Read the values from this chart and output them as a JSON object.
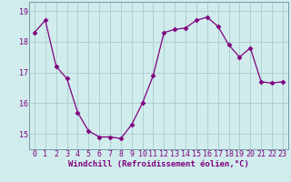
{
  "x": [
    0,
    1,
    2,
    3,
    4,
    5,
    6,
    7,
    8,
    9,
    10,
    11,
    12,
    13,
    14,
    15,
    16,
    17,
    18,
    19,
    20,
    21,
    22,
    23
  ],
  "y": [
    18.3,
    18.7,
    17.2,
    16.8,
    15.7,
    15.1,
    14.9,
    14.9,
    14.85,
    15.3,
    16.0,
    16.9,
    18.3,
    18.4,
    18.45,
    18.7,
    18.8,
    18.5,
    17.9,
    17.5,
    17.8,
    16.7,
    16.65,
    16.7
  ],
  "line_color": "#800080",
  "marker": "D",
  "marker_size": 2.5,
  "bg_color": "#d0ecec",
  "grid_color": "#aacccc",
  "xlabel": "Windchill (Refroidissement éolien,°C)",
  "xlabel_fontsize": 6.5,
  "tick_fontsize": 6.0,
  "ylim": [
    14.5,
    19.3
  ],
  "yticks": [
    15,
    16,
    17,
    18,
    19
  ],
  "xticks": [
    0,
    1,
    2,
    3,
    4,
    5,
    6,
    7,
    8,
    9,
    10,
    11,
    12,
    13,
    14,
    15,
    16,
    17,
    18,
    19,
    20,
    21,
    22,
    23
  ],
  "xtick_labels": [
    "0",
    "1",
    "2",
    "3",
    "4",
    "5",
    "6",
    "7",
    "8",
    "9",
    "10",
    "11",
    "12",
    "13",
    "14",
    "15",
    "16",
    "17",
    "18",
    "19",
    "20",
    "21",
    "22",
    "23"
  ]
}
